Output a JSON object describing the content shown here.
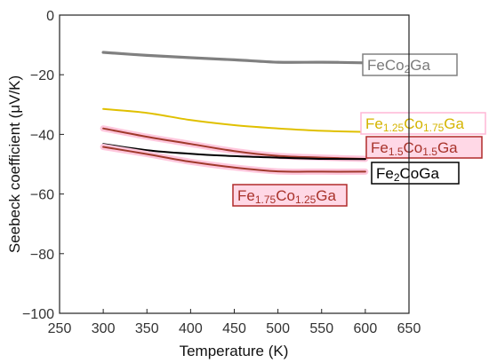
{
  "chart_data": {
    "type": "line",
    "xlabel": "Temperature (K)",
    "ylabel": "Seebeck coefficient (μV/K)",
    "xlim": [
      250,
      650
    ],
    "ylim": [
      -100,
      0
    ],
    "x_ticks": [
      "250",
      "300",
      "350",
      "400",
      "450",
      "500",
      "550",
      "600",
      "650"
    ],
    "y_ticks": [
      "0",
      "−20",
      "−40",
      "−60",
      "−80",
      "−100"
    ],
    "grid": false,
    "series": [
      {
        "name": "FeCo2Ga",
        "label_parts": [
          [
            "Fe",
            "n"
          ],
          [
            "Co",
            "n"
          ],
          [
            "2",
            "s"
          ],
          [
            "Ga",
            "n"
          ]
        ],
        "color": "#808080",
        "label_color": "#7a7a7a",
        "box_color": "#808080",
        "box_fill": "#ffffff",
        "x": [
          300,
          350,
          400,
          450,
          500,
          550,
          600
        ],
        "y": [
          -12.5,
          -13.5,
          -14.3,
          -15.0,
          -15.8,
          -15.8,
          -16.0
        ]
      },
      {
        "name": "Fe1.25Co1.75Ga",
        "label_parts": [
          [
            "Fe",
            "n"
          ],
          [
            "1.25",
            "s"
          ],
          [
            "Co",
            "n"
          ],
          [
            "1.75",
            "s"
          ],
          [
            "Ga",
            "n"
          ]
        ],
        "color": "#e0c000",
        "label_color": "#d4b400",
        "box_color": "#ffb7d6",
        "box_fill": "#ffffff",
        "x": [
          300,
          350,
          400,
          450,
          500,
          550,
          600
        ],
        "y": [
          -31.5,
          -32.8,
          -35.2,
          -36.9,
          -38.0,
          -38.8,
          -39.2
        ]
      },
      {
        "name": "Fe1.5Co1.5Ga",
        "label_parts": [
          [
            "Fe",
            "n"
          ],
          [
            "1.5",
            "s"
          ],
          [
            "Co",
            "n"
          ],
          [
            "1.5",
            "s"
          ],
          [
            "Ga",
            "n"
          ]
        ],
        "color": "#a03a2c",
        "label_color": "#a8322a",
        "box_color": "#b02a2a",
        "box_fill": "#ffd8e6",
        "x": [
          300,
          350,
          400,
          450,
          500,
          550,
          600
        ],
        "y": [
          -38.0,
          -40.8,
          -43.2,
          -45.6,
          -47.2,
          -47.8,
          -48.2
        ]
      },
      {
        "name": "Fe2CoGa",
        "label_parts": [
          [
            "Fe",
            "n"
          ],
          [
            "2",
            "s"
          ],
          [
            "CoGa",
            "n"
          ]
        ],
        "color": "#000000",
        "label_color": "#000000",
        "box_color": "#000000",
        "box_fill": "#ffffff",
        "x": [
          300,
          350,
          400,
          450,
          500,
          550,
          600
        ],
        "y": [
          -43.2,
          -45.3,
          -46.5,
          -47.3,
          -47.8,
          -48.2,
          -48.3
        ]
      },
      {
        "name": "Fe1.75Co1.25Ga",
        "label_parts": [
          [
            "Fe",
            "n"
          ],
          [
            "1.75",
            "s"
          ],
          [
            "Co",
            "n"
          ],
          [
            "1.25",
            "s"
          ],
          [
            "Ga",
            "n"
          ]
        ],
        "color": "#a03a2c",
        "label_color": "#a8322a",
        "box_color": "#b02a2a",
        "box_fill": "#ffd8e6",
        "x": [
          300,
          350,
          400,
          450,
          500,
          550,
          600
        ],
        "y": [
          -44.2,
          -46.6,
          -49.2,
          -51.1,
          -52.4,
          -52.5,
          -52.5
        ]
      }
    ]
  }
}
